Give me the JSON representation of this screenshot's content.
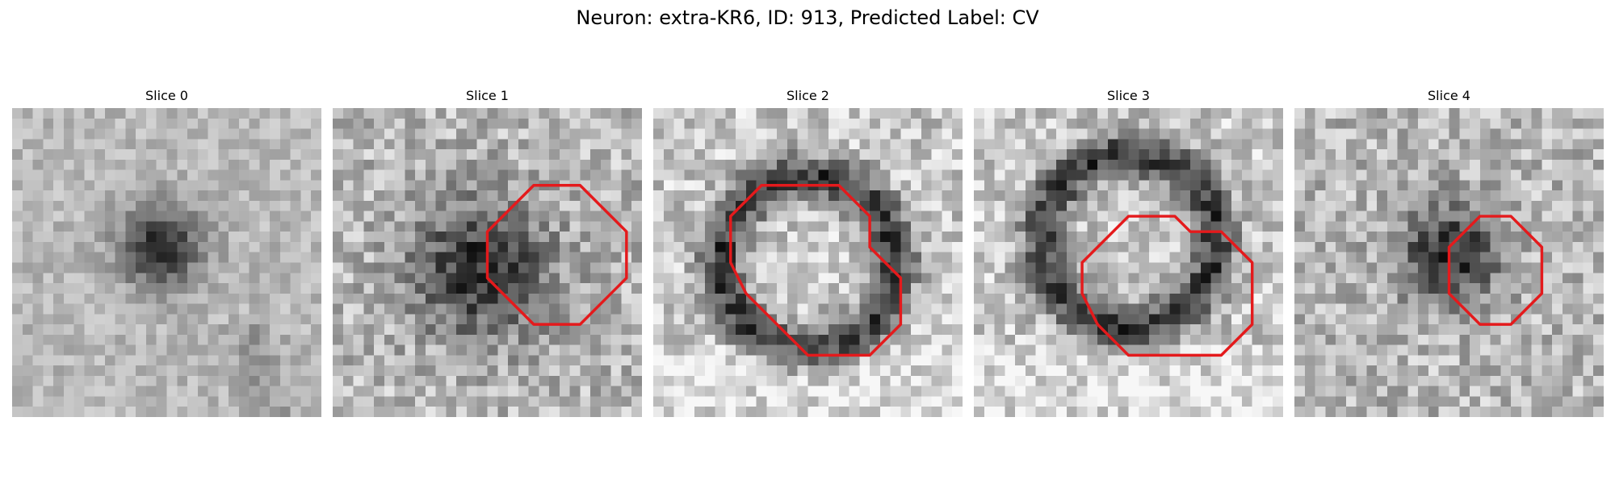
{
  "figure": {
    "title": "Neuron: extra-KR6, ID: 913, Predicted Label: CV"
  },
  "panels": [
    {
      "title": "Slice 0",
      "contour": [],
      "dark_center": [
        0.48,
        0.45
      ],
      "dark_radius": 0.13,
      "background": "smooth"
    },
    {
      "title": "Slice 1",
      "contour": [
        [
          13,
          5
        ],
        [
          16,
          5
        ],
        [
          19,
          8
        ],
        [
          19,
          11
        ],
        [
          16,
          14
        ],
        [
          13,
          14
        ],
        [
          10,
          11
        ],
        [
          10,
          8
        ]
      ],
      "dark_center": [
        0.48,
        0.52
      ],
      "dark_radius": 0.22,
      "background": "noisy"
    },
    {
      "title": "Slice 2",
      "contour": [
        [
          10,
          5
        ],
        [
          12,
          5
        ],
        [
          14,
          7
        ],
        [
          14,
          9
        ],
        [
          16,
          11
        ],
        [
          16,
          14
        ],
        [
          14,
          16
        ],
        [
          10,
          16
        ],
        [
          7,
          13
        ],
        [
          6,
          12
        ],
        [
          5,
          10
        ],
        [
          5,
          7
        ],
        [
          7,
          5
        ]
      ],
      "dark_center": [
        0.5,
        0.5
      ],
      "dark_radius": 0.28,
      "background": "ring"
    },
    {
      "title": "Slice 3",
      "contour": [
        [
          11,
          7
        ],
        [
          13,
          7
        ],
        [
          14,
          8
        ],
        [
          16,
          8
        ],
        [
          18,
          10
        ],
        [
          18,
          14
        ],
        [
          16,
          16
        ],
        [
          10,
          16
        ],
        [
          8,
          14
        ],
        [
          7,
          12
        ],
        [
          7,
          10
        ],
        [
          10,
          7
        ]
      ],
      "dark_center": [
        0.5,
        0.43
      ],
      "dark_radius": 0.28,
      "background": "ring"
    },
    {
      "title": "Slice 4",
      "contour": [
        [
          12,
          7
        ],
        [
          14,
          7
        ],
        [
          16,
          9
        ],
        [
          16,
          12
        ],
        [
          14,
          14
        ],
        [
          12,
          14
        ],
        [
          10,
          12
        ],
        [
          10,
          9
        ]
      ],
      "dark_center": [
        0.5,
        0.47
      ],
      "dark_radius": 0.16,
      "background": "noisy"
    }
  ],
  "colors": {
    "contour": "#e41a1c"
  }
}
